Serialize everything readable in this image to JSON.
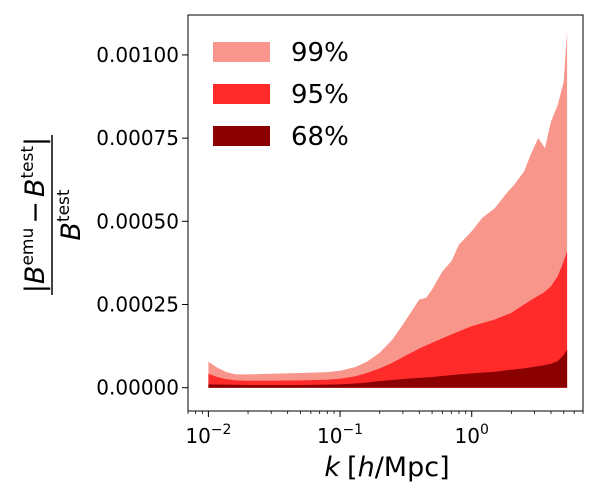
{
  "chart_data": {
    "type": "area",
    "title": "",
    "xlabel_parts": {
      "var": "k",
      "open": "[",
      "unit_h": "h",
      "unit_rest": "/Mpc]"
    },
    "xscale": "log",
    "xlim": [
      0.007,
      7
    ],
    "ylim": [
      -7e-05,
      0.00112
    ],
    "x_ticks": [
      {
        "value": 0.01,
        "base": "10",
        "exp": "−2"
      },
      {
        "value": 0.1,
        "base": "10",
        "exp": "−1"
      },
      {
        "value": 1,
        "base": "10",
        "exp": "0"
      }
    ],
    "y_ticks": [
      {
        "value": 0.0,
        "label": "0.00000"
      },
      {
        "value": 0.00025,
        "label": "0.00025"
      },
      {
        "value": 0.0005,
        "label": "0.00050"
      },
      {
        "value": 0.00075,
        "label": "0.00075"
      },
      {
        "value": 0.001,
        "label": "0.00100"
      }
    ],
    "ylabel_parts": {
      "num_B": "B",
      "num_emu": "emu",
      "minus": "−",
      "num_B2": "B",
      "num_test": "test",
      "den_B": "B",
      "den_test": "test",
      "bar": "|"
    },
    "legend_position": "top-left",
    "series": [
      {
        "name": "99%",
        "color": "#f9968b",
        "x": [
          0.01,
          0.0115,
          0.0135,
          0.016,
          0.02,
          0.03,
          0.05,
          0.08,
          0.1,
          0.13,
          0.16,
          0.2,
          0.25,
          0.3,
          0.35,
          0.4,
          0.45,
          0.5,
          0.6,
          0.7,
          0.8,
          1.0,
          1.2,
          1.5,
          1.8,
          2.1,
          2.5,
          2.8,
          3.2,
          3.6,
          4.0,
          4.5,
          5.0,
          5.3
        ],
        "upper": [
          7.8e-05,
          6.2e-05,
          4.8e-05,
          4e-05,
          4e-05,
          4.2e-05,
          4.4e-05,
          4.7e-05,
          5.1e-05,
          6.2e-05,
          7.8e-05,
          0.000105,
          0.000145,
          0.00019,
          0.00023,
          0.000265,
          0.00027,
          0.000295,
          0.00035,
          0.00038,
          0.00043,
          0.00047,
          0.00051,
          0.00054,
          0.00058,
          0.00061,
          0.00065,
          0.0007,
          0.00075,
          0.00072,
          0.0008,
          0.00085,
          0.00092,
          0.00107
        ]
      },
      {
        "name": "95%",
        "color": "#ff2a2a",
        "x": [
          0.01,
          0.0115,
          0.0135,
          0.016,
          0.02,
          0.03,
          0.05,
          0.08,
          0.1,
          0.13,
          0.16,
          0.2,
          0.25,
          0.3,
          0.4,
          0.5,
          0.7,
          1.0,
          1.5,
          2.0,
          2.5,
          3.0,
          3.5,
          4.0,
          4.5,
          5.0,
          5.3
        ],
        "upper": [
          4.2e-05,
          3.3e-05,
          2.6e-05,
          2.2e-05,
          2.1e-05,
          2.1e-05,
          2.2e-05,
          2.4e-05,
          2.7e-05,
          3.4e-05,
          4.4e-05,
          5.8e-05,
          7.5e-05,
          9.2e-05,
          0.000118,
          0.000135,
          0.00016,
          0.000185,
          0.000205,
          0.000225,
          0.00025,
          0.00027,
          0.000285,
          0.000305,
          0.000335,
          0.00038,
          0.00041
        ]
      },
      {
        "name": "68%",
        "color": "#8b0000",
        "x": [
          0.01,
          0.02,
          0.05,
          0.1,
          0.15,
          0.2,
          0.3,
          0.5,
          0.8,
          1.0,
          1.5,
          2.0,
          2.5,
          3.0,
          3.5,
          4.0,
          4.5,
          5.0,
          5.3
        ],
        "upper": [
          1e-05,
          8e-06,
          8e-06,
          1e-05,
          1.4e-05,
          2e-05,
          2.6e-05,
          3.2e-05,
          4e-05,
          4.3e-05,
          4.8e-05,
          5.4e-05,
          5.8e-05,
          6.3e-05,
          6.7e-05,
          7.2e-05,
          8e-05,
          9.8e-05,
          0.000115
        ]
      }
    ]
  }
}
